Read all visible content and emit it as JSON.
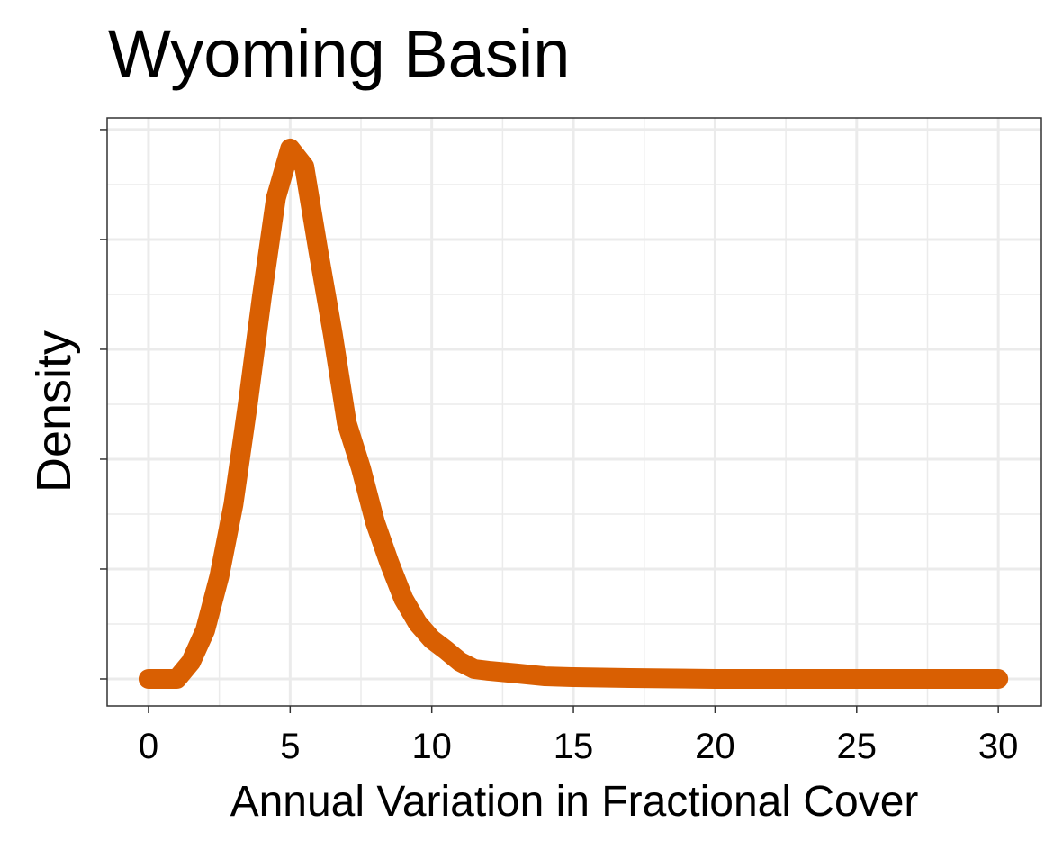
{
  "chart_data": {
    "type": "line",
    "title": "Wyoming Basin",
    "x_label": "Annual Variation in Fractional Cover",
    "y_label": "Density",
    "series": [
      {
        "color": "#d95f02",
        "x": [
          0,
          1,
          1.5,
          2,
          2.5,
          3,
          3.5,
          4,
          4.5,
          5,
          5.5,
          6,
          6.5,
          7,
          7.5,
          8,
          8.5,
          9,
          9.5,
          10,
          10.5,
          11,
          11.5,
          12,
          13,
          14,
          15,
          17,
          20,
          30
        ],
        "values": [
          0,
          0,
          0.0078,
          0.0221,
          0.0467,
          0.0795,
          0.1246,
          0.1738,
          0.2189,
          0.2414,
          0.2332,
          0.1943,
          0.1574,
          0.1164,
          0.0959,
          0.0713,
          0.0529,
          0.0365,
          0.0254,
          0.018,
          0.0131,
          0.0078,
          0.0045,
          0.0037,
          0.0025,
          0.0012,
          0.0008,
          0.0004,
          0,
          0
        ]
      }
    ],
    "xlim": [
      -1.46,
      31.52
    ],
    "xticks": [
      0,
      5,
      10,
      15,
      20,
      25,
      30
    ],
    "ylim": [
      -0.0123,
      0.2553
    ],
    "yticks": [
      0,
      0.05,
      0.1,
      0.15,
      0.2,
      0.25
    ],
    "ytick_labels": false,
    "grid": true
  }
}
